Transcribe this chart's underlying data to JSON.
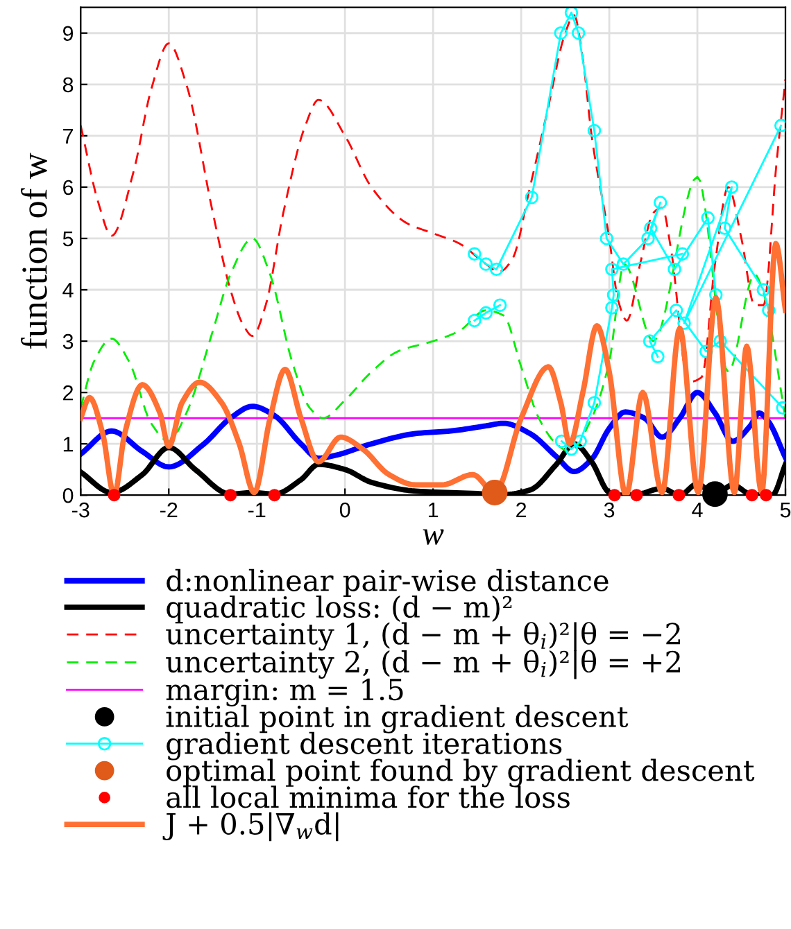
{
  "chart_data": {
    "type": "line",
    "xlabel": "w",
    "ylabel": "function of w",
    "xlim": [
      -3,
      5
    ],
    "ylim": [
      0,
      9.5
    ],
    "xticks": [
      -3,
      -2,
      -1,
      0,
      1,
      2,
      3,
      4,
      5
    ],
    "yticks": [
      0,
      1,
      2,
      3,
      4,
      5,
      6,
      7,
      8,
      9
    ],
    "grid": true,
    "legend": "bottom",
    "series": [
      {
        "name": "d:nonlinear pair-wise distance",
        "color": "#0000ff",
        "line_style": "solid",
        "x": [
          -3,
          -2.65,
          -2.3,
          -2,
          -1.6,
          -1.3,
          -1.05,
          -0.8,
          -0.5,
          -0.3,
          -0.1,
          0.3,
          0.8,
          1.2,
          1.6,
          1.8,
          2.1,
          2.4,
          2.6,
          2.8,
          3.0,
          3.18,
          3.4,
          3.6,
          3.8,
          4.0,
          4.2,
          4.4,
          4.6,
          4.7,
          4.8,
          5.0
        ],
        "values": [
          0.8,
          1.25,
          0.85,
          0.55,
          1.0,
          1.5,
          1.73,
          1.55,
          1.0,
          0.72,
          0.78,
          1.0,
          1.2,
          1.25,
          1.35,
          1.4,
          1.2,
          0.75,
          0.46,
          0.7,
          1.3,
          1.62,
          1.5,
          1.13,
          1.5,
          2.0,
          1.6,
          1.05,
          1.35,
          1.6,
          1.45,
          0.73
        ]
      },
      {
        "name": "quadratic loss: (d − m)²",
        "color": "#000000",
        "line_style": "solid",
        "x": [
          -3,
          -2.65,
          -2.3,
          -2,
          -1.7,
          -1.3,
          -1.05,
          -0.8,
          -0.5,
          -0.3,
          0,
          0.3,
          0.8,
          1.5,
          1.8,
          2.1,
          2.4,
          2.6,
          2.8,
          3.0,
          3.1,
          3.3,
          3.6,
          3.8,
          4.0,
          4.2,
          4.4,
          4.6,
          4.75,
          4.85,
          5.0
        ],
        "values": [
          0.45,
          0.05,
          0.4,
          0.93,
          0.5,
          0.02,
          0.05,
          0.02,
          0.3,
          0.6,
          0.5,
          0.25,
          0.08,
          0.03,
          0.01,
          0.1,
          0.6,
          1.0,
          0.65,
          0.05,
          0.0,
          0.01,
          0.13,
          0.0,
          0.22,
          0.0,
          0.2,
          0.02,
          0.0,
          0.0,
          0.6
        ]
      },
      {
        "name": "uncertainty 1, (d − m + θ$_{i}$)²|θ = −2",
        "color": "#ff0000",
        "line_style": "dashed",
        "x": [
          -3,
          -2.8,
          -2.65,
          -2.4,
          -2.2,
          -2,
          -1.8,
          -1.5,
          -1.3,
          -1.15,
          -1.05,
          -0.9,
          -0.7,
          -0.45,
          -0.3,
          0,
          0.3,
          0.7,
          1.0,
          1.3,
          1.6,
          1.75,
          1.9,
          2.1,
          2.3,
          2.5,
          2.6,
          2.7,
          2.8,
          3.0,
          3.1,
          3.2,
          3.35,
          3.5,
          3.6,
          3.7,
          3.9,
          4.05,
          4.2,
          4.35,
          4.5,
          4.65,
          4.75,
          4.9,
          5.0
        ],
        "values": [
          7.2,
          5.7,
          5.05,
          6.3,
          7.9,
          8.8,
          8.0,
          5.5,
          4.0,
          3.3,
          3.1,
          3.7,
          5.5,
          7.2,
          7.7,
          7.0,
          6.0,
          5.3,
          5.1,
          4.9,
          4.5,
          4.35,
          4.6,
          6.0,
          7.5,
          9.0,
          9.35,
          8.5,
          7.0,
          5.0,
          3.8,
          3.4,
          4.5,
          5.5,
          5.6,
          4.8,
          2.2,
          2.3,
          4.5,
          6.0,
          5.0,
          3.7,
          3.7,
          6.5,
          8.1
        ]
      },
      {
        "name": "uncertainty 2, (d − m + θ$_{i}$)²|θ = +2",
        "color": "#00ee00",
        "line_style": "dashed",
        "x": [
          -3,
          -2.85,
          -2.65,
          -2.45,
          -2.2,
          -2,
          -1.8,
          -1.5,
          -1.3,
          -1.05,
          -0.85,
          -0.6,
          -0.4,
          -0.25,
          0,
          0.3,
          0.6,
          1.0,
          1.3,
          1.6,
          1.8,
          2.0,
          2.2,
          2.4,
          2.55,
          2.8,
          3.0,
          3.17,
          3.5,
          4.0,
          4.35,
          4.65,
          4.74,
          5.0
        ],
        "values": [
          1.7,
          2.6,
          3.05,
          2.6,
          1.4,
          1.05,
          1.6,
          3.2,
          4.3,
          5.0,
          4.3,
          2.6,
          1.7,
          1.5,
          1.85,
          2.4,
          2.8,
          3.0,
          3.2,
          3.6,
          3.5,
          2.5,
          1.5,
          1.0,
          0.85,
          1.5,
          2.6,
          4.5,
          3.0,
          6.2,
          2.4,
          4.3,
          4.0,
          1.5
        ]
      },
      {
        "name": "initial point in gradient descent",
        "type": "scatter",
        "color": "#000000",
        "marker": "circle",
        "x": [
          4.2
        ],
        "values": [
          0.02
        ]
      },
      {
        "name": "gradient descent iterations",
        "color": "#00ffff",
        "line_style": "solid",
        "marker": "circle",
        "x": [
          4.21,
          4.12,
          3.74,
          3.47,
          3.58,
          3.44,
          3.16,
          2.97,
          2.83,
          2.65,
          2.57,
          2.45,
          2.12,
          1.72,
          1.6,
          1.47
        ],
        "values": [
          3.9,
          5.4,
          4.4,
          5.2,
          5.7,
          5.0,
          4.5,
          5.0,
          7.1,
          9.0,
          9.4,
          9.0,
          5.8,
          4.4,
          4.5,
          4.7
        ]
      },
      {
        "color": "#00ffff",
        "line_style": "solid",
        "marker": "circle",
        "x": [
          4.95,
          3.85,
          4.39,
          4.31,
          4.75,
          4.81
        ],
        "values": [
          7.2,
          3.35,
          6.0,
          5.2,
          4.0,
          3.6
        ]
      },
      {
        "color": "#00ffff",
        "line_style": "solid",
        "marker": "circle",
        "x": [
          4.97,
          4.26,
          4.1,
          3.76,
          3.46,
          3.55
        ],
        "values": [
          1.7,
          3.0,
          2.8,
          3.6,
          3.0,
          2.7
        ]
      },
      {
        "color": "#00ffff",
        "line_style": "solid",
        "marker": "circle",
        "x": [
          3.83,
          3.03,
          3.05,
          3.03,
          2.83,
          2.67,
          2.57,
          2.46
        ],
        "values": [
          4.7,
          4.4,
          3.9,
          3.65,
          1.8,
          1.05,
          0.9,
          1.05
        ]
      },
      {
        "color": "#00ffff",
        "line_style": "solid",
        "marker": "circle",
        "x": [
          1.47,
          1.6,
          1.76
        ],
        "values": [
          3.4,
          3.55,
          3.7
        ]
      },
      {
        "name": "optimal point found by gradient descent",
        "type": "scatter",
        "color": "#e05a1a",
        "marker": "circle",
        "x": [
          1.7
        ],
        "values": [
          0.05
        ]
      },
      {
        "name": "all local minima for the loss",
        "type": "scatter",
        "color": "#ff0000",
        "marker": "circle",
        "x": [
          -2.62,
          -1.3,
          -0.8,
          3.06,
          3.31,
          3.79,
          4.62,
          4.78
        ],
        "values": [
          0,
          0,
          0,
          0,
          0,
          0,
          0,
          0
        ]
      },
      {
        "name": "J + 0.5|∇$_{w}$d|",
        "color": "#ff7033",
        "line_style": "solid",
        "x": [
          -3,
          -2.9,
          -2.75,
          -2.62,
          -2.5,
          -2.3,
          -2.1,
          -2,
          -1.85,
          -1.65,
          -1.4,
          -1.2,
          -1.03,
          -0.85,
          -0.68,
          -0.5,
          -0.3,
          -0.05,
          0.2,
          0.5,
          0.8,
          1.1,
          1.45,
          1.7,
          2.0,
          2.31,
          2.45,
          2.55,
          2.7,
          2.86,
          3.0,
          3.19,
          3.38,
          3.6,
          3.8,
          4.01,
          4.21,
          4.42,
          4.56,
          4.73,
          4.89,
          5.0
        ],
        "values": [
          1.5,
          1.9,
          1.2,
          0.0,
          1.2,
          2.15,
          1.6,
          0.95,
          1.8,
          2.2,
          1.8,
          1.0,
          0.05,
          1.5,
          2.45,
          1.5,
          0.65,
          1.13,
          0.9,
          0.4,
          0.2,
          0.2,
          0.4,
          0.05,
          1.5,
          2.5,
          1.8,
          1.0,
          2.0,
          3.3,
          2.4,
          0.0,
          2.0,
          0.05,
          3.25,
          0.05,
          3.85,
          0.05,
          2.9,
          0.05,
          4.9,
          3.6
        ]
      }
    ],
    "ref_lines": [
      {
        "axis": "y",
        "value": 1.5,
        "label": "margin: m = 1.5",
        "color": "#ff00ff",
        "line_style": "solid"
      }
    ]
  }
}
